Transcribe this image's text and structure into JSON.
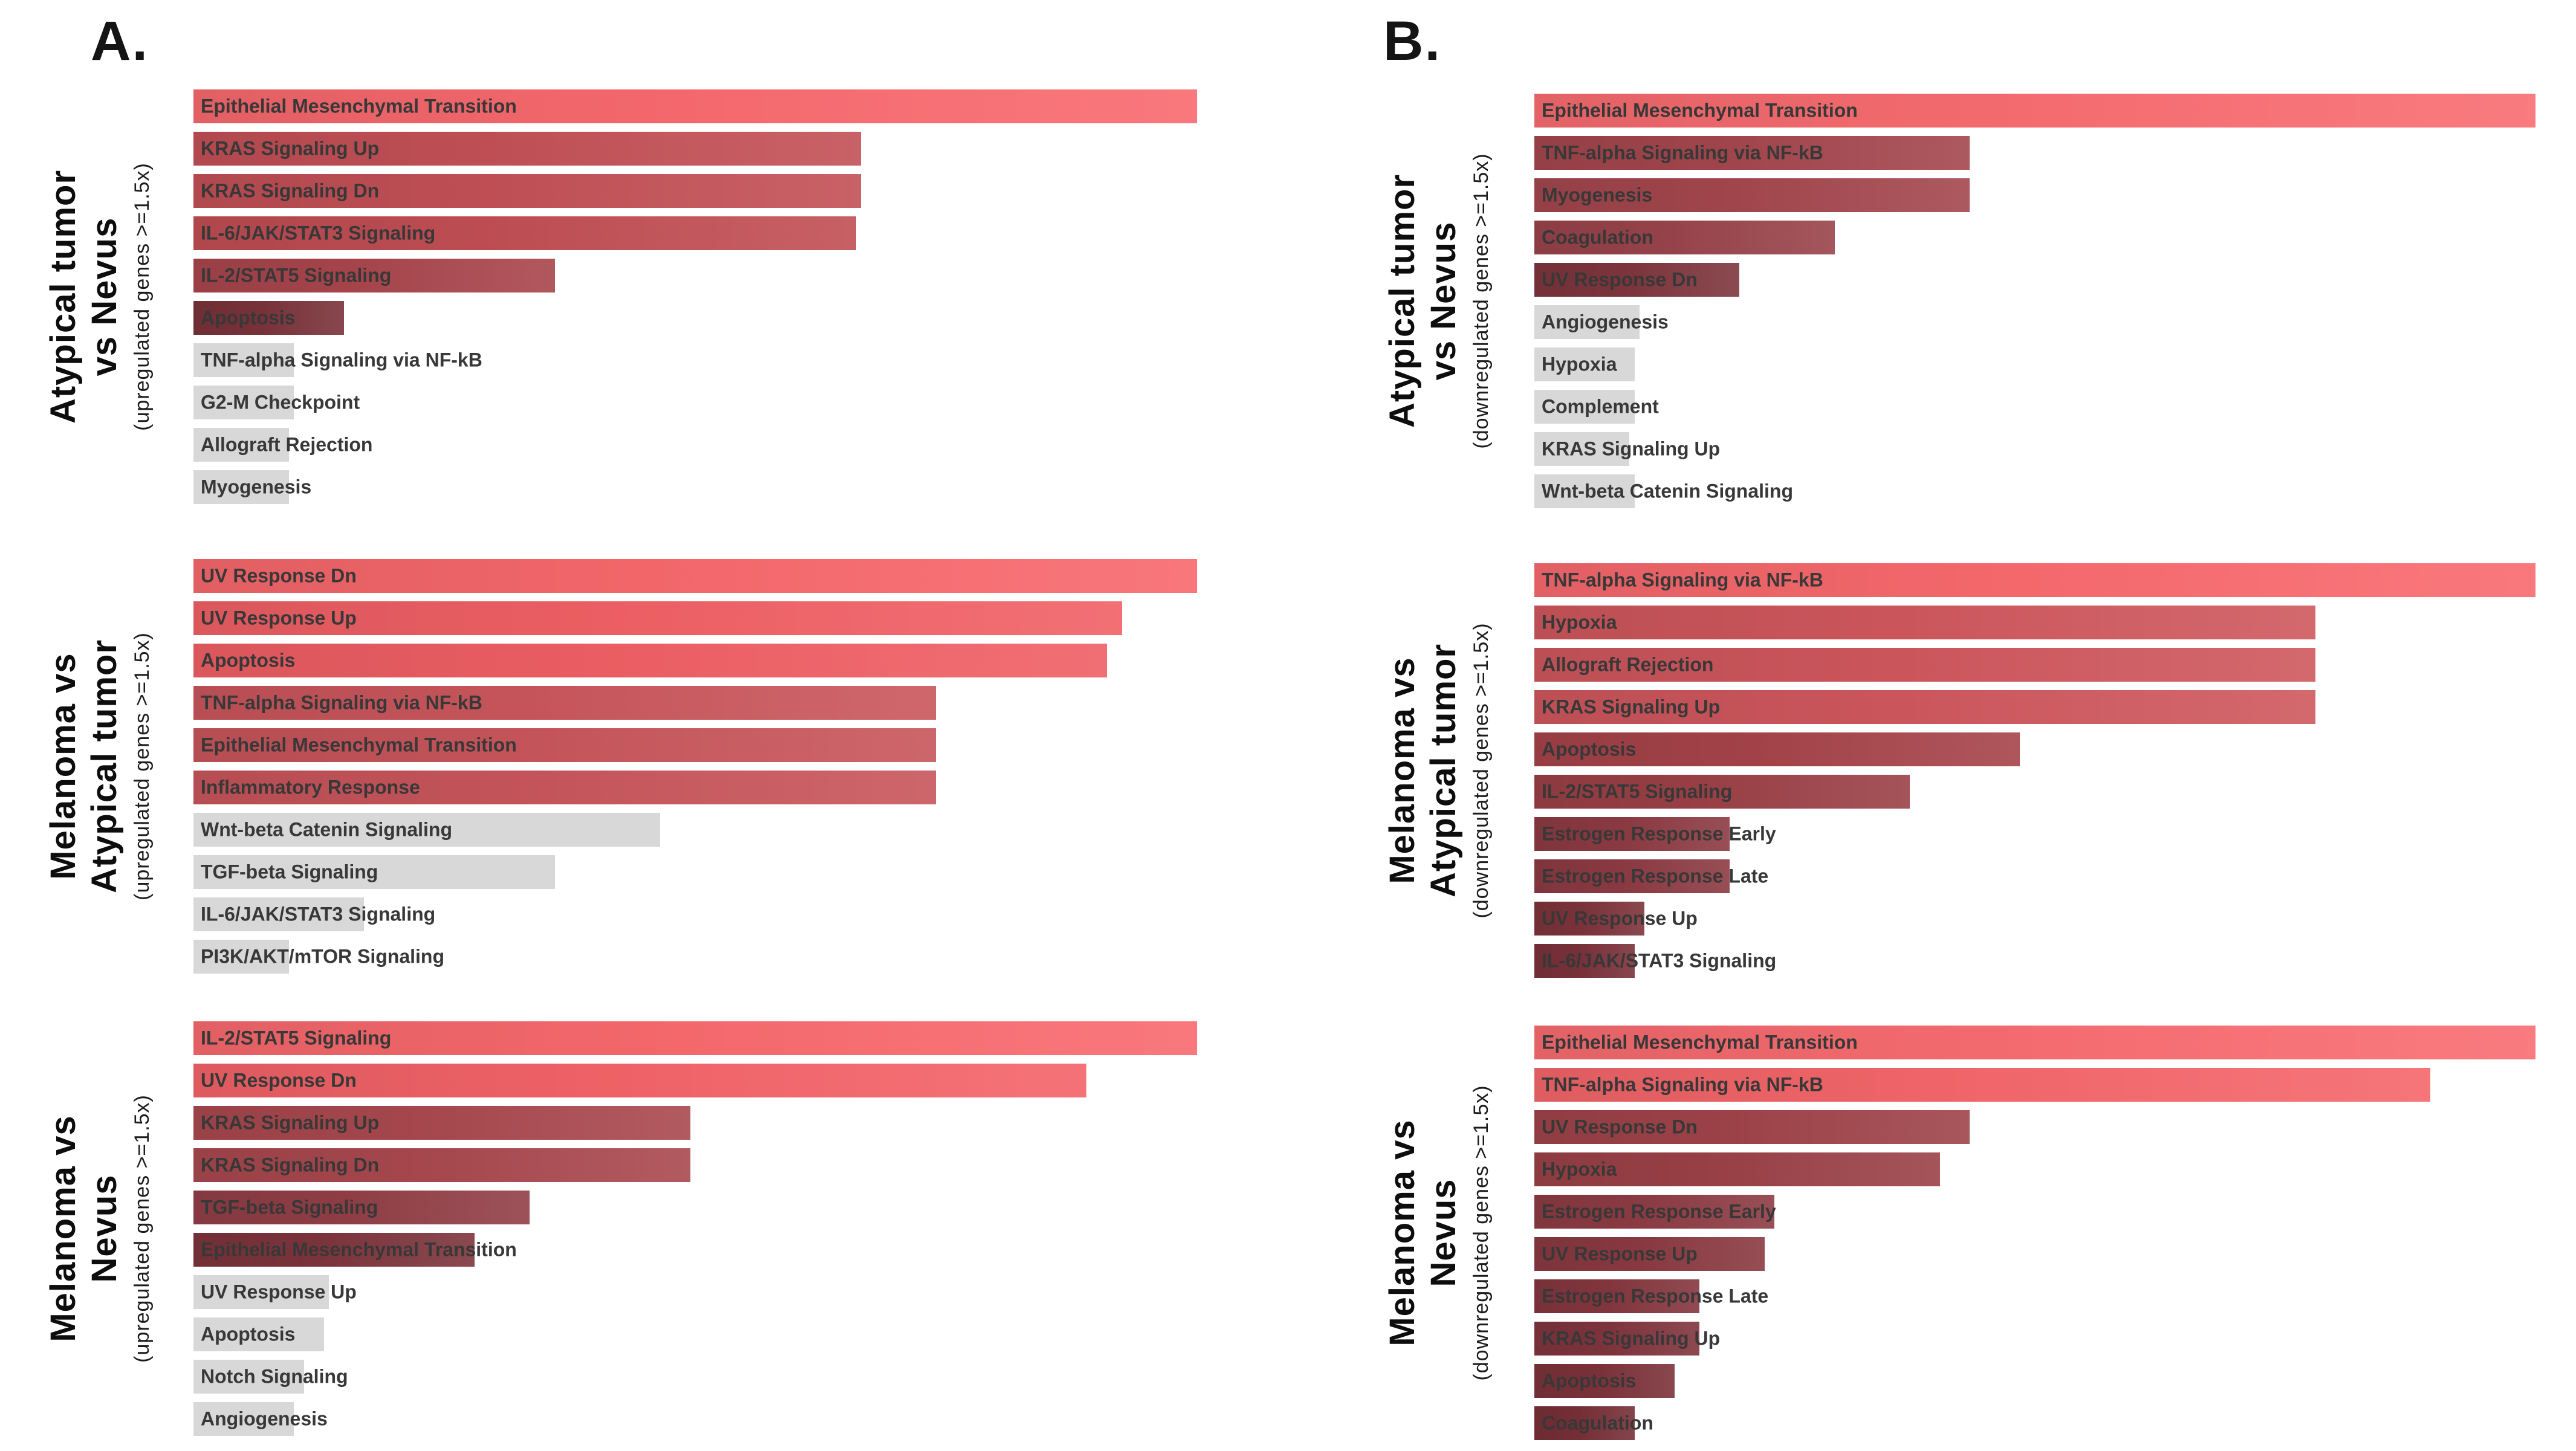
{
  "panels": {
    "a": "A.",
    "b": "B."
  },
  "style": {
    "background": "#FFFFFF",
    "panel_letter_color": "#141414",
    "bar_label_color": "#383838",
    "nonsignificant_bar_color": "#D8D8D8",
    "max_significance_color": "#F8696D",
    "min_significance_color": "#772F37"
  },
  "chart_data": [
    {
      "type": "bar",
      "orientation": "horizontal",
      "panel": "A",
      "title": "Atypical tumor vs Nevus",
      "title_lines": [
        "Atypical tumor",
        "vs Nevus"
      ],
      "subtitle": "(upregulated genes >=1.5x)",
      "values_unit": "percent_of_longest_bar",
      "xlim": [
        0,
        100
      ],
      "grid": false,
      "nonsig_color": "#D8D8D8",
      "categories": [
        "Epithelial Mesenchymal Transition",
        "KRAS Signaling Up",
        "KRAS Signaling Dn",
        "IL-6/JAK/STAT3 Signaling",
        "IL-2/STAT5 Signaling",
        "Apoptosis",
        "TNF-alpha Signaling via NF-kB",
        "G2-M Checkpoint",
        "Allograft Rejection",
        "Myogenesis"
      ],
      "values": [
        100,
        66.5,
        66.5,
        66,
        36,
        15,
        10,
        10,
        9.5,
        9.5
      ],
      "bar_colors": [
        "#F8696E",
        "#C25056",
        "#C25056",
        "#C04E54",
        "#A8454C",
        "#7A323A",
        "#D8D8D8",
        "#D8D8D8",
        "#D8D8D8",
        "#D8D8D8"
      ]
    },
    {
      "type": "bar",
      "orientation": "horizontal",
      "panel": "A",
      "title": "Melanoma vs Atypical tumor",
      "title_lines": [
        "Melanoma vs",
        "Atypical tumor"
      ],
      "subtitle": "(upregulated genes >=1.5x)",
      "values_unit": "percent_of_longest_bar",
      "xlim": [
        0,
        100
      ],
      "grid": false,
      "nonsig_color": "#D8D8D8",
      "categories": [
        "UV Response Dn",
        "UV Response Up",
        "Apoptosis",
        "TNF-alpha Signaling via NF-kB",
        "Epithelial Mesenchymal Transition",
        "Inflammatory Response",
        "Wnt-beta Catenin Signaling",
        "TGF-beta Signaling",
        "IL-6/JAK/STAT3 Signaling",
        "PI3K/AKT/mTOR Signaling"
      ],
      "values": [
        100,
        92.5,
        91,
        74,
        74,
        74,
        46.5,
        36,
        17,
        9.5
      ],
      "bar_colors": [
        "#F7686C",
        "#F06065",
        "#EF5F64",
        "#C9565C",
        "#C7555B",
        "#C7555B",
        "#D8D8D8",
        "#D8D8D8",
        "#D8D8D8",
        "#D8D8D8"
      ]
    },
    {
      "type": "bar",
      "orientation": "horizontal",
      "panel": "A",
      "title": "Melanoma vs Nevus",
      "title_lines": [
        "Melanoma vs",
        "Nevus"
      ],
      "subtitle": "(upregulated genes >=1.5x)",
      "values_unit": "percent_of_longest_bar",
      "xlim": [
        0,
        100
      ],
      "grid": false,
      "nonsig_color": "#D8D8D8",
      "categories": [
        "IL-2/STAT5 Signaling",
        "UV Response Dn",
        "KRAS Signaling Up",
        "KRAS Signaling Dn",
        "TGF-beta Signaling",
        "Epithelial Mesenchymal Transition",
        "UV Response Up",
        "Apoptosis",
        "Notch Signaling",
        "Angiogenesis"
      ],
      "values": [
        100,
        89,
        49.5,
        49.5,
        33.5,
        28,
        13.5,
        13,
        11,
        10
      ],
      "bar_colors": [
        "#F8696D",
        "#F36368",
        "#A8484E",
        "#A8484E",
        "#913E46",
        "#7D343C",
        "#D8D8D8",
        "#D8D8D8",
        "#D8D8D8",
        "#D8D8D8"
      ]
    },
    {
      "type": "bar",
      "orientation": "horizontal",
      "panel": "B",
      "title": "Atypical tumor vs Nevus",
      "title_lines": [
        "Atypical tumor",
        "vs Nevus"
      ],
      "subtitle": "(downregulated genes >=1.5x)",
      "values_unit": "percent_of_longest_bar",
      "xlim": [
        0,
        100
      ],
      "grid": false,
      "nonsig_color": "#D8D8D8",
      "categories": [
        "Epithelial Mesenchymal Transition",
        "TNF-alpha Signaling via NF-kB",
        "Myogenesis",
        "Coagulation",
        "UV Response Dn",
        "Angiogenesis",
        "Hypoxia",
        "Complement",
        "KRAS Signaling Up",
        "Wnt-beta Catenin Signaling"
      ],
      "values": [
        100,
        43.5,
        43.5,
        30,
        20.5,
        10.5,
        10,
        10,
        9.5,
        10
      ],
      "bar_colors": [
        "#F86C70",
        "#A3464D",
        "#A3464D",
        "#99434B",
        "#7E353D",
        "#D8D8D8",
        "#D8D8D8",
        "#D8D8D8",
        "#D8D8D8",
        "#D8D8D8"
      ]
    },
    {
      "type": "bar",
      "orientation": "horizontal",
      "panel": "B",
      "title": "Melanoma vs Atypical tumor",
      "title_lines": [
        "Melanoma vs",
        "Atypical tumor"
      ],
      "subtitle": "(downregulated genes >=1.5x)",
      "values_unit": "percent_of_longest_bar",
      "xlim": [
        0,
        100
      ],
      "grid": false,
      "nonsig_color": "#D8D8D8",
      "categories": [
        "TNF-alpha Signaling via NF-kB",
        "Hypoxia",
        "Allograft Rejection",
        "KRAS Signaling Up",
        "Apoptosis",
        "IL-2/STAT5 Signaling",
        "Estrogen Response Early",
        "Estrogen Response Late",
        "UV Response Up",
        "IL-6/JAK/STAT3 Signaling"
      ],
      "values": [
        100,
        78,
        78,
        78,
        48.5,
        37.5,
        19.5,
        19.5,
        11,
        10
      ],
      "bar_colors": [
        "#F8696D",
        "#CE575D",
        "#CE575D",
        "#CE575D",
        "#A54349",
        "#9A4046",
        "#8C3A42",
        "#8C3A42",
        "#7D333B",
        "#7A313A"
      ]
    },
    {
      "type": "bar",
      "orientation": "horizontal",
      "panel": "B",
      "title": "Melanoma vs Nevus",
      "title_lines": [
        "Melanoma vs",
        "Nevus"
      ],
      "subtitle": "(downregulated genes >=1.5x)",
      "values_unit": "percent_of_longest_bar",
      "xlim": [
        0,
        100
      ],
      "grid": false,
      "nonsig_color": "#D8D8D8",
      "categories": [
        "Epithelial Mesenchymal Transition",
        "TNF-alpha Signaling via NF-kB",
        "UV Response Dn",
        "Hypoxia",
        "Estrogen Response Early",
        "UV Response Up",
        "Estrogen Response Late",
        "KRAS Signaling Up",
        "Apoptosis",
        "Coagulation"
      ],
      "values": [
        100,
        89.5,
        43.5,
        40.5,
        24,
        23,
        16.5,
        16.5,
        14,
        10
      ],
      "bar_colors": [
        "#F86C70",
        "#F4666A",
        "#9E4349",
        "#9A4147",
        "#8D3B43",
        "#8A3941",
        "#84363E",
        "#80343D",
        "#7C323A",
        "#772F37"
      ]
    }
  ]
}
